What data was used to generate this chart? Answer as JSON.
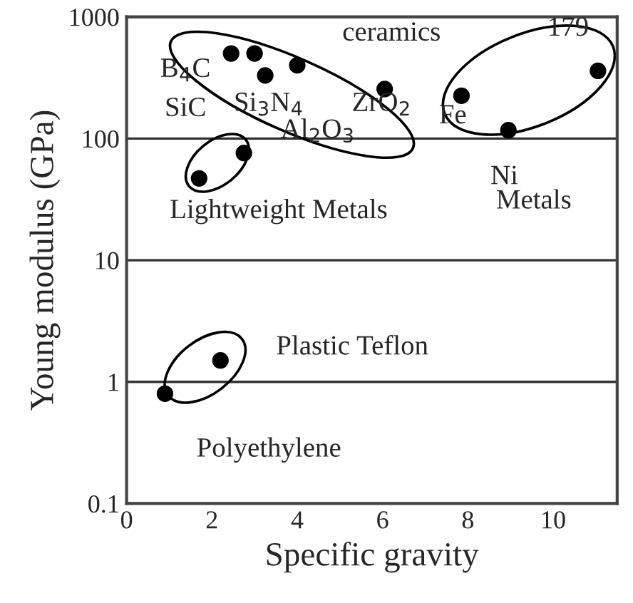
{
  "chart_data": {
    "type": "scatter",
    "xlabel": "Specific gravity",
    "ylabel": "Young modulus (GPa)",
    "x": [
      0.9,
      2.2,
      1.7,
      2.75,
      2.45,
      3.0,
      3.25,
      4.0,
      6.05,
      7.85,
      8.95,
      11.05
    ],
    "values": [
      0.8,
      1.5,
      47,
      76,
      500,
      500,
      330,
      400,
      255,
      225,
      117,
      360
    ],
    "color": "#000000",
    "marker": "circle",
    "log": "y",
    "xlim": [
      0,
      11.5
    ],
    "xticks": [
      0,
      2,
      4,
      6,
      8,
      10
    ],
    "ylim": [
      0.1,
      1000
    ],
    "yticks": [
      0.1,
      1,
      10,
      100,
      1000
    ],
    "grid": "y",
    "annotations": [
      "ceramics",
      "179",
      "B$_{4}$C",
      "SiC",
      "Si$_{3}$N$_{4}$",
      "ZrO$_{2}$",
      "Fe",
      "Al$_{2}$O$_{3}$",
      "Ni",
      "Metals",
      "Lightweight Metals",
      "Plastic Teflon",
      "Polyethylene"
    ]
  }
}
